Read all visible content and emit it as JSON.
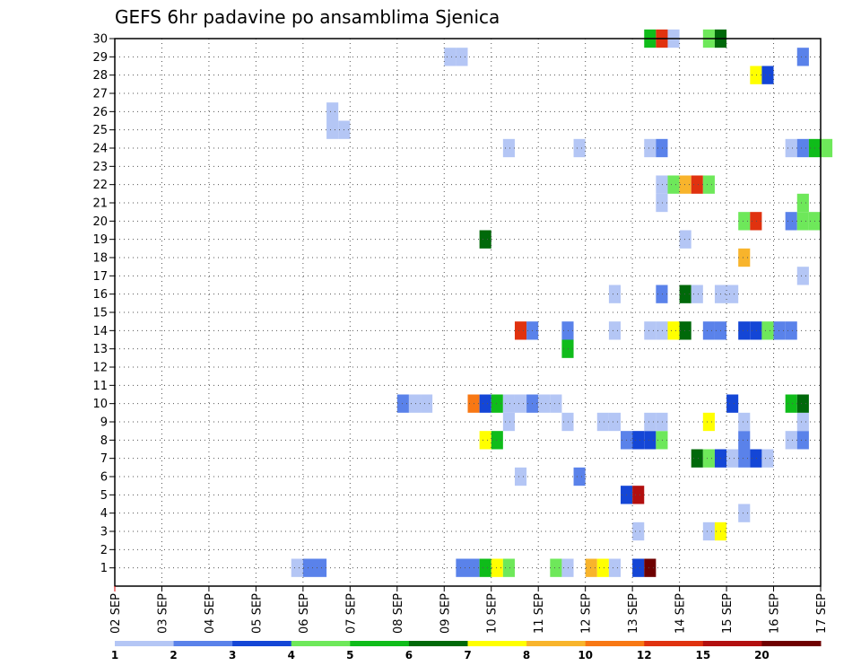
{
  "chart_data": {
    "type": "heatmap",
    "title": "GEFS 6hr padavine po ansamblima Sjenica",
    "xlabel": "",
    "ylabel": "",
    "x_tick_labels": [
      "02 SEP",
      "03 SEP",
      "04 SEP",
      "05 SEP",
      "06 SEP",
      "07 SEP",
      "08 SEP",
      "09 SEP",
      "10 SEP",
      "11 SEP",
      "12 SEP",
      "13 SEP",
      "14 SEP",
      "15 SEP",
      "16 SEP",
      "17 SEP"
    ],
    "x_range_days": [
      0,
      15
    ],
    "y_range": [
      0,
      30
    ],
    "y_ticks": [
      1,
      2,
      3,
      4,
      5,
      6,
      7,
      8,
      9,
      10,
      11,
      12,
      13,
      14,
      15,
      16,
      17,
      18,
      19,
      20,
      21,
      22,
      23,
      24,
      25,
      26,
      27,
      28,
      29,
      30
    ],
    "steps_per_day": 4,
    "grid": true,
    "colorbar": {
      "levels": [
        "1",
        "2",
        "3",
        "4",
        "5",
        "6",
        "7",
        "8",
        "10",
        "12",
        "15",
        "20"
      ],
      "colors": [
        "#b4c6f5",
        "#5a82ea",
        "#1446d6",
        "#6ee85a",
        "#0fbc1a",
        "#00690a",
        "#ffff00",
        "#f8b42c",
        "#f87814",
        "#e0320f",
        "#b20f0f",
        "#6e0000"
      ]
    },
    "cells": [
      [
        3.75,
        1,
        0
      ],
      [
        4.0,
        1,
        1
      ],
      [
        4.25,
        1,
        1
      ],
      [
        7.25,
        1,
        1
      ],
      [
        7.5,
        1,
        1
      ],
      [
        7.75,
        1,
        4
      ],
      [
        8.0,
        1,
        6
      ],
      [
        8.25,
        1,
        3
      ],
      [
        9.25,
        1,
        3
      ],
      [
        9.5,
        1,
        0
      ],
      [
        10.0,
        1,
        7
      ],
      [
        10.25,
        1,
        6
      ],
      [
        10.5,
        1,
        0
      ],
      [
        11.0,
        1,
        2
      ],
      [
        11.25,
        1,
        11
      ],
      [
        11.0,
        3,
        0
      ],
      [
        12.5,
        3,
        0
      ],
      [
        12.75,
        3,
        6
      ],
      [
        13.25,
        4,
        0
      ],
      [
        10.75,
        5,
        2
      ],
      [
        11.0,
        5,
        10
      ],
      [
        8.5,
        6,
        0
      ],
      [
        9.75,
        6,
        1
      ],
      [
        12.25,
        7,
        5
      ],
      [
        12.5,
        7,
        3
      ],
      [
        12.75,
        7,
        2
      ],
      [
        13.0,
        7,
        0
      ],
      [
        13.25,
        7,
        1
      ],
      [
        13.5,
        7,
        2
      ],
      [
        13.75,
        7,
        0
      ],
      [
        7.75,
        8,
        6
      ],
      [
        8.0,
        8,
        4
      ],
      [
        10.75,
        8,
        1
      ],
      [
        11.0,
        8,
        2
      ],
      [
        11.25,
        8,
        2
      ],
      [
        11.5,
        8,
        3
      ],
      [
        13.25,
        8,
        1
      ],
      [
        14.25,
        8,
        0
      ],
      [
        14.5,
        8,
        1
      ],
      [
        8.25,
        9,
        0
      ],
      [
        9.5,
        9,
        0
      ],
      [
        10.25,
        9,
        0
      ],
      [
        10.5,
        9,
        0
      ],
      [
        11.25,
        9,
        0
      ],
      [
        11.5,
        9,
        0
      ],
      [
        12.5,
        9,
        6
      ],
      [
        13.25,
        9,
        0
      ],
      [
        14.5,
        9,
        0
      ],
      [
        6.0,
        10,
        1
      ],
      [
        6.25,
        10,
        0
      ],
      [
        6.5,
        10,
        0
      ],
      [
        7.5,
        10,
        8
      ],
      [
        7.75,
        10,
        2
      ],
      [
        8.0,
        10,
        4
      ],
      [
        8.25,
        10,
        0
      ],
      [
        8.5,
        10,
        0
      ],
      [
        8.75,
        10,
        1
      ],
      [
        9.0,
        10,
        0
      ],
      [
        9.25,
        10,
        0
      ],
      [
        13.0,
        10,
        2
      ],
      [
        14.25,
        10,
        4
      ],
      [
        14.5,
        10,
        5
      ],
      [
        9.5,
        13,
        4
      ],
      [
        8.5,
        14,
        9
      ],
      [
        8.75,
        14,
        1
      ],
      [
        9.5,
        14,
        1
      ],
      [
        10.5,
        14,
        0
      ],
      [
        11.25,
        14,
        0
      ],
      [
        11.5,
        14,
        0
      ],
      [
        11.75,
        14,
        6
      ],
      [
        12.0,
        14,
        5
      ],
      [
        12.5,
        14,
        1
      ],
      [
        12.75,
        14,
        1
      ],
      [
        13.25,
        14,
        2
      ],
      [
        13.5,
        14,
        2
      ],
      [
        13.75,
        14,
        3
      ],
      [
        14.0,
        14,
        1
      ],
      [
        14.25,
        14,
        1
      ],
      [
        10.5,
        16,
        0
      ],
      [
        11.5,
        16,
        1
      ],
      [
        12.0,
        16,
        5
      ],
      [
        12.25,
        16,
        0
      ],
      [
        12.75,
        16,
        0
      ],
      [
        13.0,
        16,
        0
      ],
      [
        14.5,
        17,
        0
      ],
      [
        13.25,
        18,
        7
      ],
      [
        12.0,
        19,
        0
      ],
      [
        7.75,
        19,
        5
      ],
      [
        13.25,
        20,
        3
      ],
      [
        13.5,
        20,
        9
      ],
      [
        14.25,
        20,
        1
      ],
      [
        14.5,
        20,
        3
      ],
      [
        14.75,
        20,
        3
      ],
      [
        11.5,
        21,
        0
      ],
      [
        14.5,
        21,
        3
      ],
      [
        11.5,
        22,
        0
      ],
      [
        11.75,
        22,
        3
      ],
      [
        12.0,
        22,
        7
      ],
      [
        12.25,
        22,
        9
      ],
      [
        12.5,
        22,
        3
      ],
      [
        8.25,
        24,
        0
      ],
      [
        9.75,
        24,
        0
      ],
      [
        11.25,
        24,
        0
      ],
      [
        11.5,
        24,
        1
      ],
      [
        14.25,
        24,
        0
      ],
      [
        14.5,
        24,
        1
      ],
      [
        14.75,
        24,
        4
      ],
      [
        15.0,
        24,
        3
      ],
      [
        4.5,
        25,
        0
      ],
      [
        4.75,
        25,
        0
      ],
      [
        4.5,
        26,
        0
      ],
      [
        13.5,
        28,
        6
      ],
      [
        13.75,
        28,
        2
      ],
      [
        7.0,
        29,
        0
      ],
      [
        7.25,
        29,
        0
      ],
      [
        14.5,
        29,
        1
      ],
      [
        11.25,
        30,
        4
      ],
      [
        11.5,
        30,
        9
      ],
      [
        11.75,
        30,
        0
      ],
      [
        12.5,
        30,
        3
      ],
      [
        12.75,
        30,
        5
      ]
    ]
  }
}
